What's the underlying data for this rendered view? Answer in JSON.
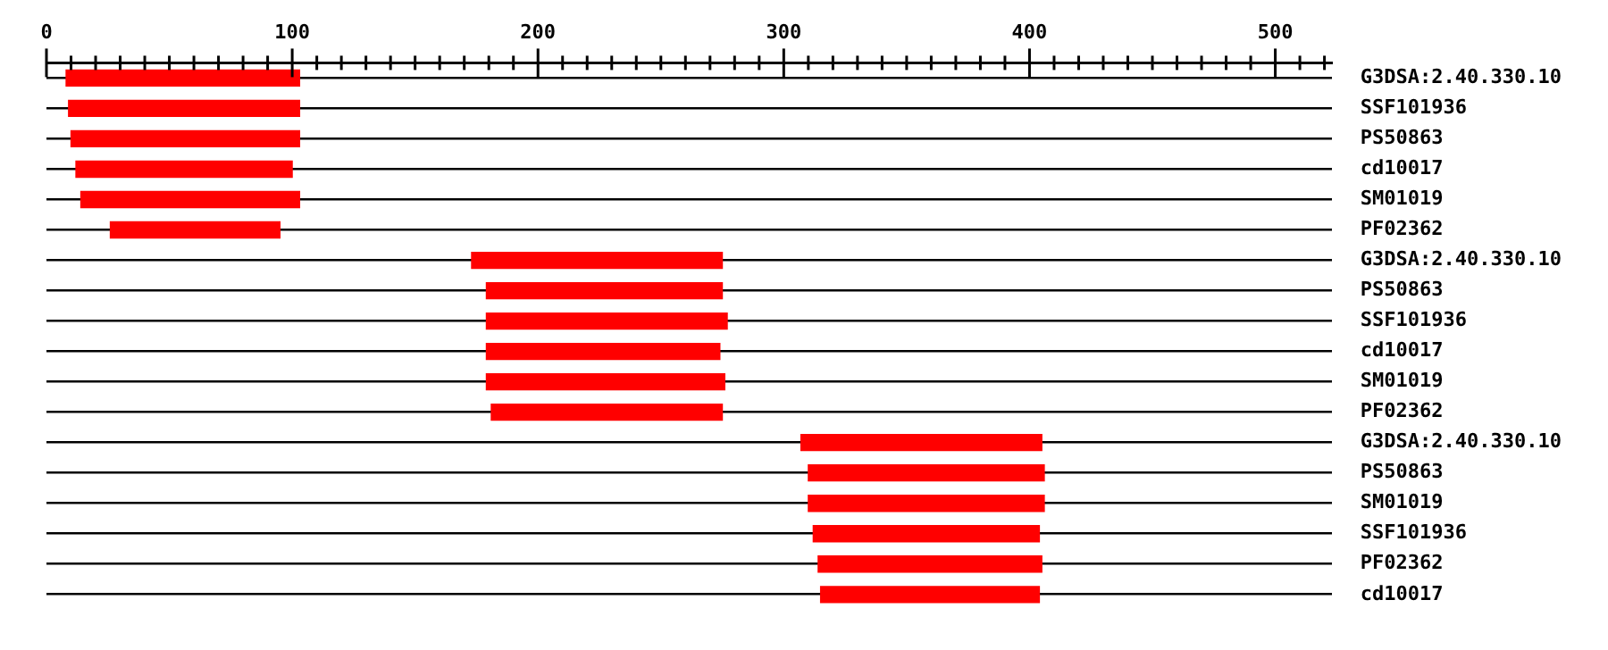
{
  "chart_data": {
    "type": "bar",
    "orientation": "horizontal",
    "categories": [
      "G3DSA:2.40.330.10",
      "SSF101936",
      "PS50863",
      "cd10017",
      "SM01019",
      "PF02362",
      "G3DSA:2.40.330.10",
      "PS50863",
      "SSF101936",
      "cd10017",
      "SM01019",
      "PF02362",
      "G3DSA:2.40.330.10",
      "PS50863",
      "SM01019",
      "SSF101936",
      "PF02362",
      "cd10017"
    ],
    "base": [
      8,
      9,
      10,
      12,
      14,
      26,
      173,
      179,
      179,
      179,
      179,
      181,
      307,
      310,
      310,
      312,
      314,
      315
    ],
    "values": [
      95,
      94,
      93,
      88,
      89,
      69,
      102,
      96,
      98,
      95,
      97,
      94,
      98,
      96,
      96,
      92,
      91,
      89
    ],
    "color": "#ff0000",
    "xlim": [
      0,
      523
    ],
    "xticks": [
      0,
      {
        "value": 10,
        "label": null
      },
      {
        "value": 20,
        "label": null
      },
      {
        "value": 30,
        "label": null
      },
      {
        "value": 40,
        "label": null
      },
      {
        "value": 50,
        "label": null
      },
      {
        "value": 60,
        "label": null
      },
      {
        "value": 70,
        "label": null
      },
      {
        "value": 80,
        "label": null
      },
      {
        "value": 90,
        "label": null
      },
      100,
      {
        "value": 110,
        "label": null
      },
      {
        "value": 120,
        "label": null
      },
      {
        "value": 130,
        "label": null
      },
      {
        "value": 140,
        "label": null
      },
      {
        "value": 150,
        "label": null
      },
      {
        "value": 160,
        "label": null
      },
      {
        "value": 170,
        "label": null
      },
      {
        "value": 180,
        "label": null
      },
      {
        "value": 190,
        "label": null
      },
      200,
      {
        "value": 210,
        "label": null
      },
      {
        "value": 220,
        "label": null
      },
      {
        "value": 230,
        "label": null
      },
      {
        "value": 240,
        "label": null
      },
      {
        "value": 250,
        "label": null
      },
      {
        "value": 260,
        "label": null
      },
      {
        "value": 270,
        "label": null
      },
      {
        "value": 280,
        "label": null
      },
      {
        "value": 290,
        "label": null
      },
      300,
      {
        "value": 310,
        "label": null
      },
      {
        "value": 320,
        "label": null
      },
      {
        "value": 330,
        "label": null
      },
      {
        "value": 340,
        "label": null
      },
      {
        "value": 350,
        "label": null
      },
      {
        "value": 360,
        "label": null
      },
      {
        "value": 370,
        "label": null
      },
      {
        "value": 380,
        "label": null
      },
      {
        "value": 390,
        "label": null
      },
      400,
      {
        "value": 410,
        "label": null
      },
      {
        "value": 420,
        "label": null
      },
      {
        "value": 430,
        "label": null
      },
      {
        "value": 440,
        "label": null
      },
      {
        "value": 450,
        "label": null
      },
      {
        "value": 460,
        "label": null
      },
      {
        "value": 470,
        "label": null
      },
      {
        "value": 480,
        "label": null
      },
      {
        "value": 490,
        "label": null
      },
      500,
      {
        "value": 510,
        "label": null
      },
      {
        "value": 520,
        "label": null
      }
    ],
    "grid": "y",
    "legend": false
  }
}
